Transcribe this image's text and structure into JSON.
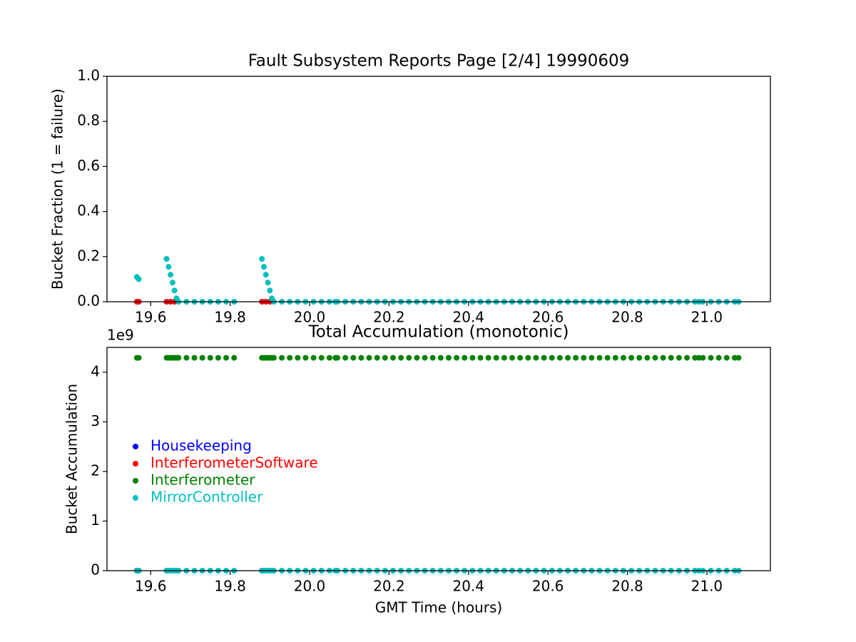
{
  "chart_data": [
    {
      "type": "scatter",
      "title": "Fault Subsystem Reports Page [2/4] 19990609",
      "y_label": "Bucket Fraction (1 = failure)",
      "xlim": [
        19.49,
        21.16
      ],
      "ylim": [
        0,
        1
      ],
      "xticks": [
        19.6,
        19.8,
        {
          "value": 20,
          "label": "20.0"
        },
        20.2,
        20.4,
        20.6,
        20.8,
        {
          "value": 21,
          "label": "21.0"
        }
      ],
      "yticks": [
        {
          "value": 0,
          "label": "0.0"
        },
        0.2,
        0.4,
        0.6,
        0.8,
        {
          "value": 1,
          "label": "1.0"
        }
      ],
      "x": [
        19.565,
        19.57,
        19.64,
        19.645,
        19.65,
        19.655,
        19.66,
        19.665,
        19.67,
        19.69,
        19.71,
        19.73,
        19.75,
        19.77,
        19.79,
        19.81,
        19.88,
        19.885,
        19.89,
        19.895,
        19.9,
        19.905,
        19.91,
        19.93,
        19.95,
        19.97,
        19.99,
        20.01,
        20.03,
        20.05,
        20.065,
        20.07,
        20.09,
        20.11,
        20.13,
        20.15,
        20.17,
        20.19,
        20.21,
        20.23,
        20.25,
        20.27,
        20.29,
        20.31,
        20.33,
        20.35,
        20.37,
        20.39,
        20.41,
        20.43,
        20.45,
        20.47,
        20.49,
        20.51,
        20.53,
        20.55,
        20.57,
        20.59,
        20.61,
        20.63,
        20.65,
        20.67,
        20.69,
        20.71,
        20.73,
        20.75,
        20.77,
        20.79,
        20.81,
        20.83,
        20.85,
        20.87,
        20.89,
        20.91,
        20.93,
        20.95,
        20.97,
        20.98,
        20.99,
        21.01,
        21.03,
        21.05,
        21.07,
        21.08
      ],
      "series": [
        {
          "name": "InterferometerSoftware",
          "color": "#ff0000",
          "x": [
            19.565,
            19.57,
            19.64,
            19.65,
            19.66,
            19.88,
            19.89,
            19.9
          ],
          "values": [
            0,
            0,
            0,
            0,
            0,
            0,
            0,
            0
          ]
        },
        {
          "name": "MirrorController",
          "color": "#00bfbf",
          "values": [
            0.11,
            0.1,
            0.19,
            0.155,
            0.12,
            0.085,
            0.05,
            0.015,
            0,
            0,
            0,
            0,
            0,
            0,
            0,
            0,
            0.19,
            0.155,
            0.12,
            0.085,
            0.05,
            0.015,
            0,
            0,
            0,
            0,
            0,
            0,
            0,
            0,
            0,
            0,
            0,
            0,
            0,
            0,
            0,
            0,
            0,
            0,
            0,
            0,
            0,
            0,
            0,
            0,
            0,
            0,
            0,
            0,
            0,
            0,
            0,
            0,
            0,
            0,
            0,
            0,
            0,
            0,
            0,
            0,
            0,
            0,
            0,
            0,
            0,
            0,
            0,
            0,
            0,
            0,
            0,
            0,
            0,
            0,
            0,
            0,
            0,
            0,
            0,
            0,
            0,
            0
          ]
        }
      ]
    },
    {
      "type": "scatter",
      "title": "Total Accumulation (monotonic)",
      "x_label": "GMT Time (hours)",
      "y_label": "Bucket Accumulation",
      "y_offset_label": "1e9",
      "xlim": [
        19.49,
        21.16
      ],
      "ylim": [
        0,
        4.5
      ],
      "xticks": [
        19.6,
        19.8,
        {
          "value": 20,
          "label": "20.0"
        },
        20.2,
        20.4,
        20.6,
        20.8,
        {
          "value": 21,
          "label": "21.0"
        }
      ],
      "yticks": [
        0,
        1,
        2,
        3,
        4
      ],
      "legend": "lower left",
      "x": [
        19.565,
        19.57,
        19.64,
        19.645,
        19.65,
        19.655,
        19.66,
        19.665,
        19.67,
        19.69,
        19.71,
        19.73,
        19.75,
        19.77,
        19.79,
        19.81,
        19.88,
        19.885,
        19.89,
        19.895,
        19.9,
        19.905,
        19.91,
        19.93,
        19.95,
        19.97,
        19.99,
        20.01,
        20.03,
        20.05,
        20.065,
        20.07,
        20.09,
        20.11,
        20.13,
        20.15,
        20.17,
        20.19,
        20.21,
        20.23,
        20.25,
        20.27,
        20.29,
        20.31,
        20.33,
        20.35,
        20.37,
        20.39,
        20.41,
        20.43,
        20.45,
        20.47,
        20.49,
        20.51,
        20.53,
        20.55,
        20.57,
        20.59,
        20.61,
        20.63,
        20.65,
        20.67,
        20.69,
        20.71,
        20.73,
        20.75,
        20.77,
        20.79,
        20.81,
        20.83,
        20.85,
        20.87,
        20.89,
        20.91,
        20.93,
        20.95,
        20.97,
        20.98,
        20.99,
        21.01,
        21.03,
        21.05,
        21.07,
        21.08
      ],
      "series": [
        {
          "name": "Housekeeping",
          "color": "#0000ff",
          "x": [
            19.565,
            19.57
          ],
          "values": [
            0,
            0
          ]
        },
        {
          "name": "InterferometerSoftware",
          "color": "#ff0000",
          "x": [
            19.565,
            19.57,
            19.64,
            19.88
          ],
          "values": [
            0,
            0,
            0,
            0
          ]
        },
        {
          "name": "Interferometer",
          "color": "#008000",
          "values": [
            4.29,
            4.29,
            4.29,
            4.29,
            4.29,
            4.29,
            4.29,
            4.29,
            4.29,
            4.29,
            4.29,
            4.29,
            4.29,
            4.29,
            4.29,
            4.29,
            4.29,
            4.29,
            4.29,
            4.29,
            4.29,
            4.29,
            4.29,
            4.29,
            4.29,
            4.29,
            4.29,
            4.29,
            4.29,
            4.29,
            4.29,
            4.29,
            4.29,
            4.29,
            4.29,
            4.29,
            4.29,
            4.29,
            4.29,
            4.29,
            4.29,
            4.29,
            4.29,
            4.29,
            4.29,
            4.29,
            4.29,
            4.29,
            4.29,
            4.29,
            4.29,
            4.29,
            4.29,
            4.29,
            4.29,
            4.29,
            4.29,
            4.29,
            4.29,
            4.29,
            4.29,
            4.29,
            4.29,
            4.29,
            4.29,
            4.29,
            4.29,
            4.29,
            4.29,
            4.29,
            4.29,
            4.29,
            4.29,
            4.29,
            4.29,
            4.29,
            4.29,
            4.29,
            4.29,
            4.29,
            4.29,
            4.29,
            4.29,
            4.29
          ]
        },
        {
          "name": "MirrorController",
          "color": "#00bfbf",
          "values": [
            0,
            0,
            0,
            0,
            0,
            0,
            0,
            0,
            0,
            0,
            0,
            0,
            0,
            0,
            0,
            0,
            0,
            0,
            0,
            0,
            0,
            0,
            0,
            0,
            0,
            0,
            0,
            0,
            0,
            0,
            0,
            0,
            0,
            0,
            0,
            0,
            0,
            0,
            0,
            0,
            0,
            0,
            0,
            0,
            0,
            0,
            0,
            0,
            0,
            0,
            0,
            0,
            0,
            0,
            0,
            0,
            0,
            0,
            0,
            0,
            0,
            0,
            0,
            0,
            0,
            0,
            0,
            0,
            0,
            0,
            0,
            0,
            0,
            0,
            0,
            0,
            0,
            0,
            0,
            0,
            0,
            0,
            0,
            0
          ]
        }
      ]
    }
  ]
}
